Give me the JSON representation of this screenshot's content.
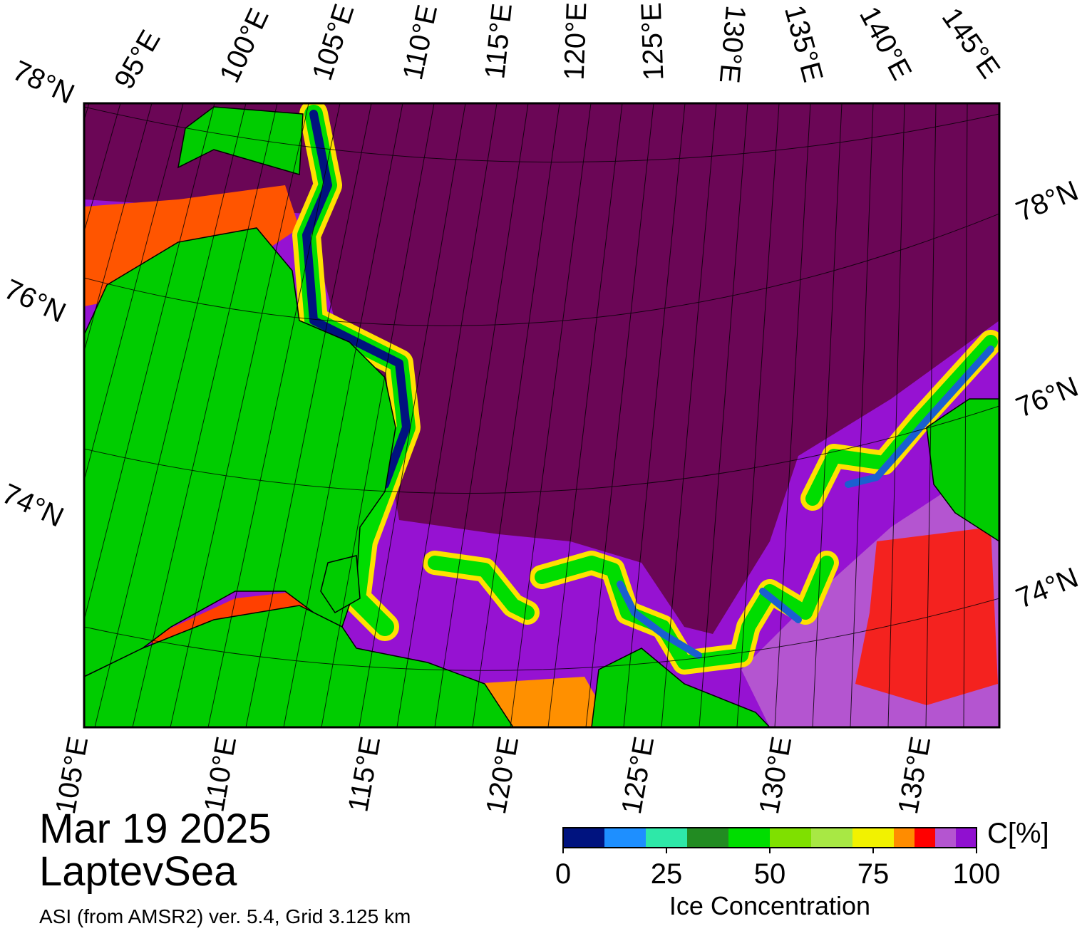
{
  "map": {
    "title": "Mar 19 2025",
    "region": "LaptevSea",
    "source": "ASI (from AMSR2) ver. 5.4,  Grid 3.125 km",
    "top_labels": [
      "95°E",
      "100°E",
      "105°E",
      "110°E",
      "115°E",
      "120°E",
      "125°E",
      "130°E",
      "135°E",
      "140°E",
      "145°E"
    ],
    "bottom_labels": [
      "105°E",
      "110°E",
      "115°E",
      "120°E",
      "125°E",
      "130°E",
      "135°E"
    ],
    "left_labels": [
      "78°N",
      "76°N",
      "74°N"
    ],
    "right_labels": [
      "78°N",
      "76°N",
      "74°N"
    ]
  },
  "colorbar": {
    "unit": "C[%]",
    "label": "Ice Concentration",
    "range": [
      0,
      100
    ],
    "ticks": [
      0,
      25,
      50,
      75,
      100
    ],
    "bounds": [
      0,
      10,
      20,
      30,
      40,
      50,
      60,
      70,
      80,
      85,
      90,
      95,
      100
    ],
    "colors": [
      "#00137f",
      "#1e8fff",
      "#2ee8a8",
      "#228b22",
      "#00dd00",
      "#7fe000",
      "#a8e844",
      "#f2f200",
      "#ff8c00",
      "#ff0000",
      "#b455d0",
      "#9010d0"
    ]
  }
}
